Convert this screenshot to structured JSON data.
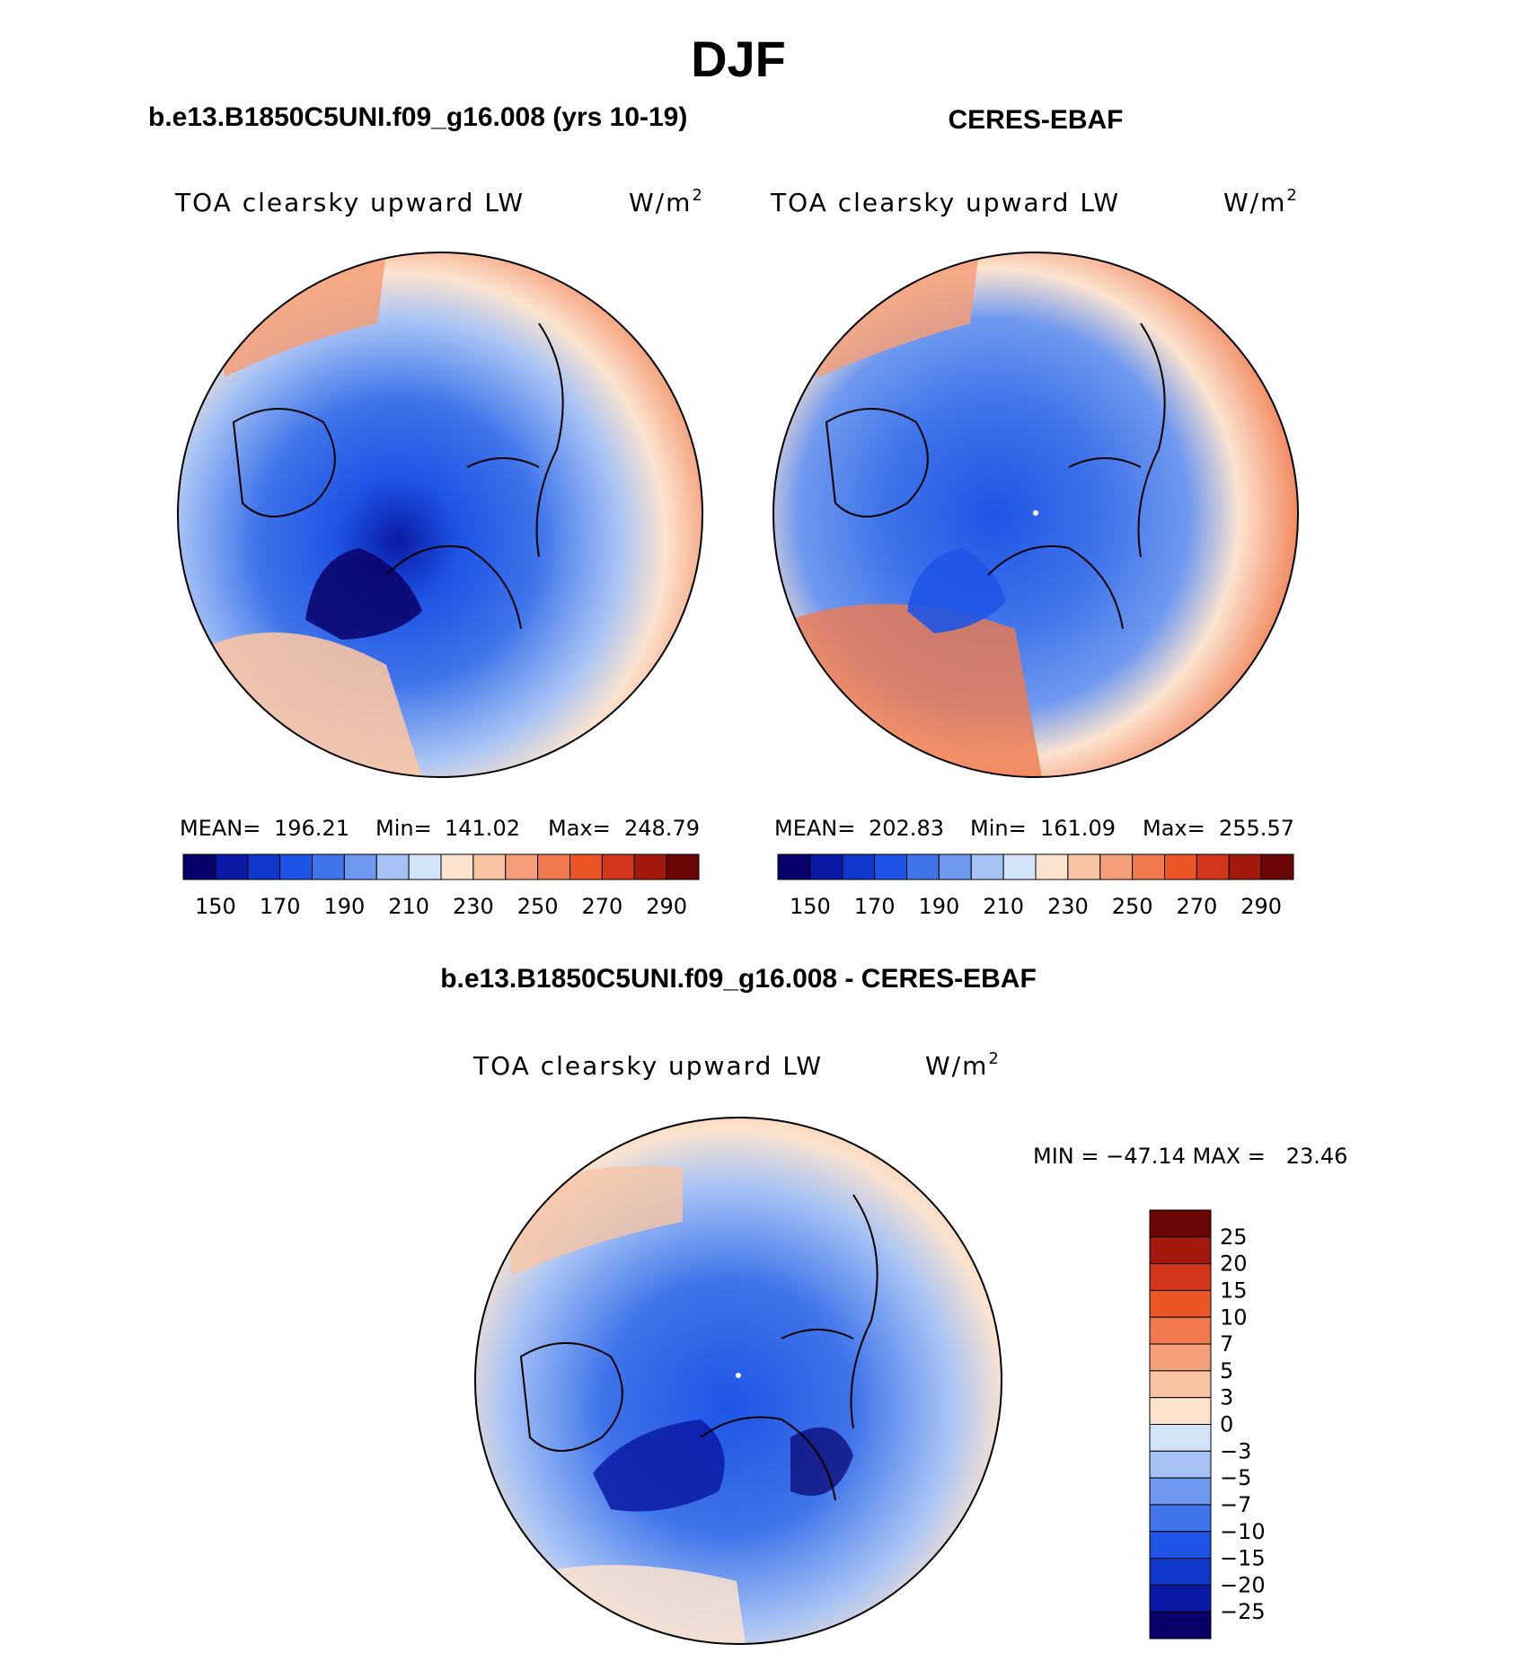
{
  "figure": {
    "title": "DJF"
  },
  "chart_data": [
    {
      "type": "contour-map",
      "projection": "north-polar-stereographic",
      "case_title": "b.e13.B1850C5UNI.f09_g16.008 (yrs 10-19)",
      "variable": "TOA clearsky upward LW",
      "units": "W/m",
      "units_sup": "2",
      "stats": {
        "mean_label": "MEAN=",
        "mean": "196.21",
        "min_label": "Min=",
        "min": "141.02",
        "max_label": "Max=",
        "max": "248.79"
      },
      "levels": [
        150,
        160,
        170,
        180,
        190,
        200,
        210,
        220,
        230,
        240,
        250,
        260,
        270,
        280,
        290
      ],
      "tick_labels": [
        "150",
        "170",
        "190",
        "210",
        "230",
        "250",
        "270",
        "290"
      ]
    },
    {
      "type": "contour-map",
      "projection": "north-polar-stereographic",
      "case_title": "CERES-EBAF",
      "variable": "TOA clearsky upward LW",
      "units": "W/m",
      "units_sup": "2",
      "stats": {
        "mean_label": "MEAN=",
        "mean": "202.83",
        "min_label": "Min=",
        "min": "161.09",
        "max_label": "Max=",
        "max": "255.57"
      },
      "levels": [
        150,
        160,
        170,
        180,
        190,
        200,
        210,
        220,
        230,
        240,
        250,
        260,
        270,
        280,
        290
      ],
      "tick_labels": [
        "150",
        "170",
        "190",
        "210",
        "230",
        "250",
        "270",
        "290"
      ]
    },
    {
      "type": "contour-map-difference",
      "projection": "north-polar-stereographic",
      "case_title": "b.e13.B1850C5UNI.f09_g16.008 - CERES-EBAF",
      "variable": "TOA clearsky upward LW",
      "units": "W/m",
      "units_sup": "2",
      "stats_text": "MIN = −47.14 MAX =   23.46",
      "min": -47.14,
      "max": 23.46,
      "levels": [
        -25,
        -20,
        -15,
        -10,
        -7,
        -5,
        -3,
        0,
        3,
        5,
        7,
        10,
        15,
        20,
        25
      ],
      "tick_labels": [
        "25",
        "20",
        "15",
        "10",
        "7",
        "5",
        "3",
        "0",
        "−3",
        "−5",
        "−7",
        "−10",
        "−15",
        "−20",
        "−25"
      ]
    }
  ],
  "colors": {
    "abs_palette": [
      "#08006a",
      "#0a1aa6",
      "#0f37cc",
      "#1f55e6",
      "#3f74ea",
      "#6f98ef",
      "#a6c2f5",
      "#d3e3f8",
      "#fbe3cf",
      "#f8c4a4",
      "#f49f79",
      "#f07a4e",
      "#ec5526",
      "#d3361a",
      "#a3190e",
      "#6a0606"
    ],
    "diff_palette": [
      "#08006a",
      "#0a1aa6",
      "#0f37cc",
      "#1f55e6",
      "#3f74ea",
      "#6f98ef",
      "#a6c2f5",
      "#d3e3f8",
      "#fbe3cf",
      "#f8c4a4",
      "#f49f79",
      "#f07a4e",
      "#ec5526",
      "#d3361a",
      "#a3190e",
      "#6a0606"
    ]
  }
}
